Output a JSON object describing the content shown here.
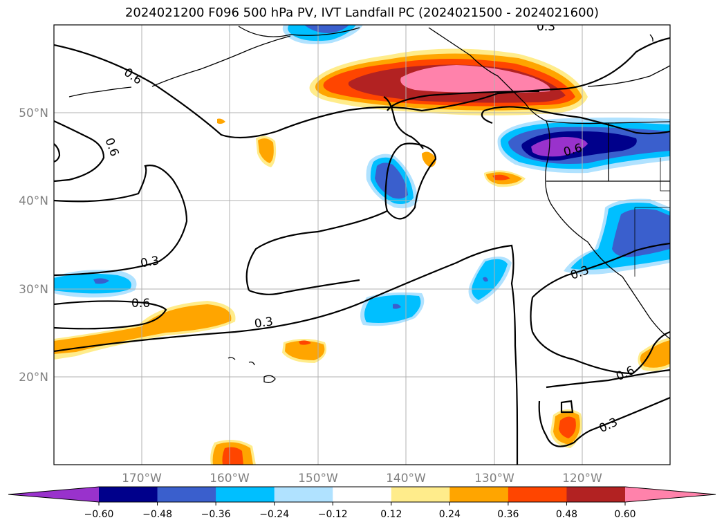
{
  "title": "2024021200 F096 500 hPa PV, IVT Landfall PC (2024021500 - 2024021600)",
  "lat_labels": [
    "50°N",
    "40°N",
    "30°N",
    "20°N"
  ],
  "lon_labels": [
    "170°W",
    "160°W",
    "150°W",
    "140°W",
    "130°W",
    "120°W"
  ],
  "contour_labels": [
    "0.6",
    "0.6",
    "0.3",
    "0.6",
    "0.3",
    "0.3",
    "0.6",
    "0.6",
    "0.3",
    "0.3"
  ],
  "colorbar": {
    "ticks": [
      "−0.60",
      "−0.48",
      "−0.36",
      "−0.24",
      "−0.12",
      "0.12",
      "0.24",
      "0.36",
      "0.48",
      "0.60"
    ],
    "colors": [
      "#9932cc",
      "#00008b",
      "#3a5fcd",
      "#00bfff",
      "#b0e2ff",
      "#ffffff",
      "#ffec8b",
      "#ffa500",
      "#ff4500",
      "#b22222",
      "#ff82ab"
    ]
  }
}
